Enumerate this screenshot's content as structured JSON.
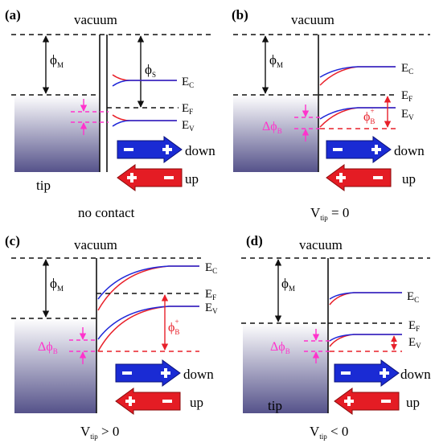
{
  "colors": {
    "dash_black": "#111111",
    "magenta": "#ff33cc",
    "red": "#e8202a",
    "blue": "#2028d8",
    "tip_top": "#ffffff",
    "tip_bottom": "#55528a"
  },
  "arrows": {
    "down": "down",
    "up": "up"
  },
  "panels": [
    {
      "letter": "(a)",
      "vacuum": "vacuum",
      "phi_m": "ϕ",
      "phi_m_sub": "M",
      "phi_s": "ϕ",
      "phi_s_sub": "S",
      "ec": "E",
      "ec_sub": "C",
      "ef": "E",
      "ef_sub": "F",
      "ev": "E",
      "ev_sub": "V",
      "tip": "tip",
      "caption": "no contact"
    },
    {
      "letter": "(b)",
      "vacuum": "vacuum",
      "phi_m": "ϕ",
      "phi_m_sub": "M",
      "ec": "E",
      "ec_sub": "C",
      "ef": "E",
      "ef_sub": "F",
      "ev": "E",
      "ev_sub": "V",
      "dphi": "Δϕ",
      "dphi_sub": "B",
      "phib": "ϕ",
      "phib_sub": "B",
      "phib_sup": "+",
      "caption_main": "V",
      "caption_sub": "tip",
      "caption_rest": " = 0"
    },
    {
      "letter": "(c)",
      "vacuum": "vacuum",
      "phi_m": "ϕ",
      "phi_m_sub": "M",
      "ec": "E",
      "ec_sub": "C",
      "ef": "E",
      "ef_sub": "F",
      "ev": "E",
      "ev_sub": "V",
      "dphi": "Δϕ",
      "dphi_sub": "B",
      "phib": "ϕ",
      "phib_sub": "B",
      "phib_sup": "+",
      "caption_main": "V",
      "caption_sub": "tip",
      "caption_rest": " > 0"
    },
    {
      "letter": "(d)",
      "vacuum": "vacuum",
      "phi_m": "ϕ",
      "phi_m_sub": "M",
      "ec": "E",
      "ec_sub": "C",
      "ef": "E",
      "ef_sub": "F",
      "ev": "E",
      "ev_sub": "V",
      "dphi": "Δϕ",
      "dphi_sub": "B",
      "tip": "tip",
      "caption_main": "V",
      "caption_sub": "tip",
      "caption_rest": " < 0"
    }
  ]
}
